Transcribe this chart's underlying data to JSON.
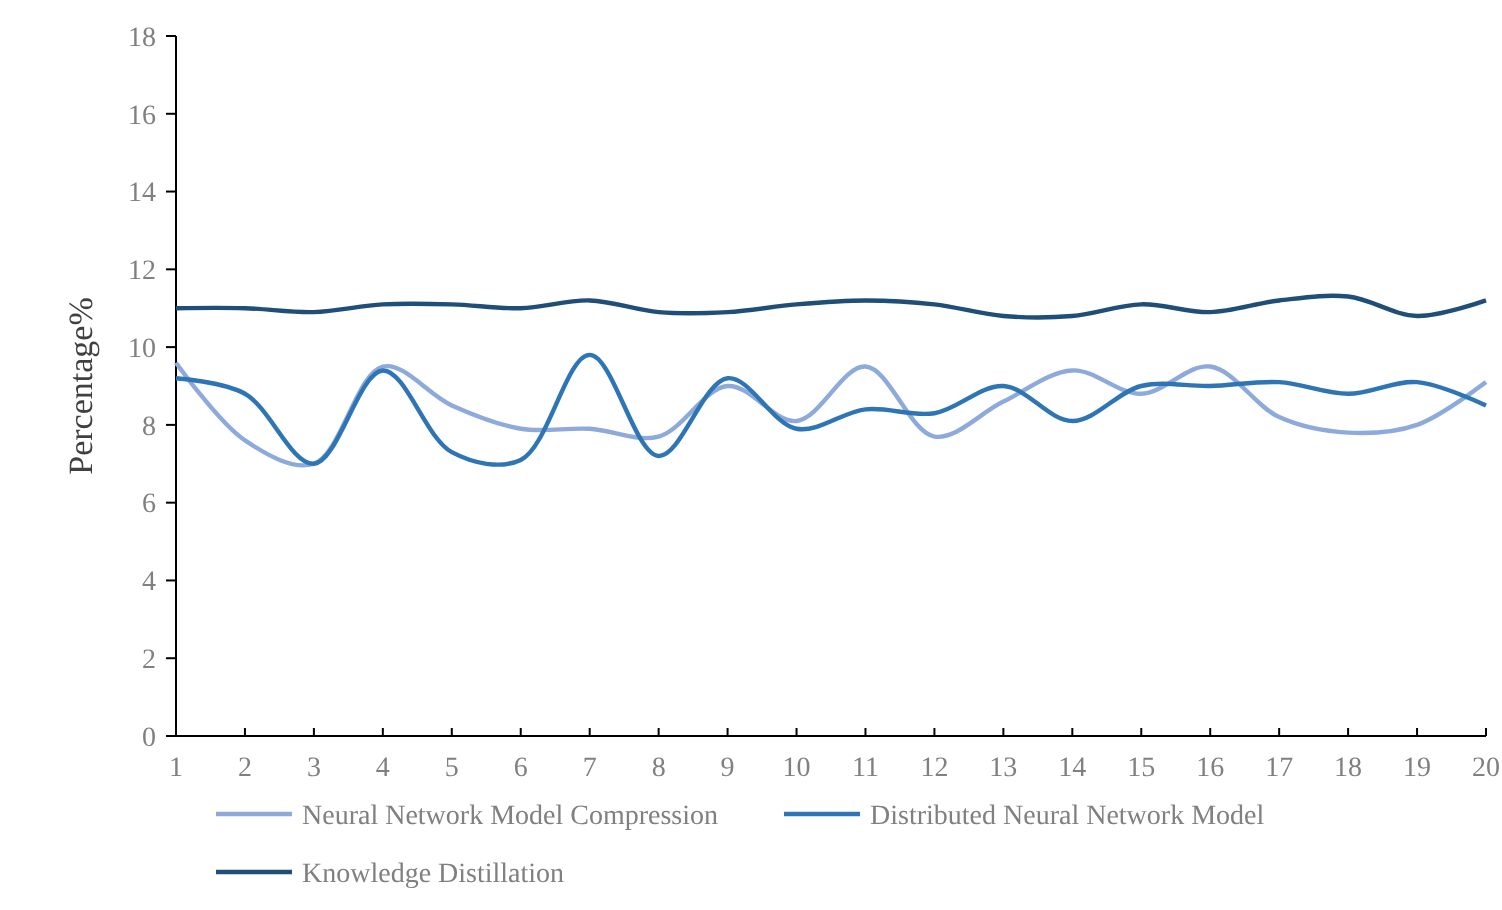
{
  "chart_data": {
    "type": "line",
    "ylabel": "Percentage%",
    "x": [
      1,
      2,
      3,
      4,
      5,
      6,
      7,
      8,
      9,
      10,
      11,
      12,
      13,
      14,
      15,
      16,
      17,
      18,
      19,
      20
    ],
    "xlim": [
      1,
      20
    ],
    "xticks": [
      1,
      2,
      3,
      4,
      5,
      6,
      7,
      8,
      9,
      10,
      11,
      12,
      13,
      14,
      15,
      16,
      17,
      18,
      19,
      20
    ],
    "ylim": [
      0,
      18
    ],
    "yticks": [
      0,
      2,
      4,
      6,
      8,
      10,
      12,
      14,
      16,
      18
    ],
    "grid": false,
    "legend": "bottom",
    "marker": "none",
    "line_style": "solid",
    "series": [
      {
        "name": "Neural Network Model Compression",
        "color": "#8eaadb",
        "values": [
          9.6,
          7.6,
          7.0,
          9.5,
          8.5,
          7.9,
          7.9,
          7.7,
          9.0,
          8.1,
          9.5,
          7.7,
          8.6,
          9.4,
          8.8,
          9.5,
          8.2,
          7.8,
          8.0,
          9.1
        ]
      },
      {
        "name": "Distributed Neural Network Model",
        "color": "#2e75b6",
        "values": [
          9.2,
          8.8,
          7.0,
          9.4,
          7.3,
          7.1,
          9.8,
          7.2,
          9.2,
          7.9,
          8.4,
          8.3,
          9.0,
          8.1,
          9.0,
          9.0,
          9.1,
          8.8,
          9.1,
          8.5
        ]
      },
      {
        "name": "Knowledge Distillation",
        "color": "#1f4e79",
        "values": [
          11.0,
          11.0,
          10.9,
          11.1,
          11.1,
          11.0,
          11.2,
          10.9,
          10.9,
          11.1,
          11.2,
          11.1,
          10.8,
          10.8,
          11.1,
          10.9,
          11.2,
          11.3,
          10.8,
          11.2
        ]
      }
    ]
  }
}
